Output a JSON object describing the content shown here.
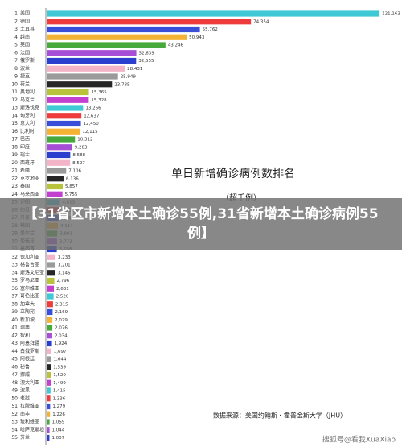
{
  "chart_data": {
    "type": "bar",
    "orientation": "horizontal",
    "title": "单日新增确诊病例数排名",
    "subtitle": "（超千例）",
    "source": "数据来源：美国约翰斯・霍普金斯大学（JHU）",
    "banner": "【31省区市新增本土确诊55例,31省新增本土确诊病例55例】",
    "watermark": "搜狐号@看我XuaXiao",
    "ranks": [
      1,
      2,
      3,
      4,
      5,
      6,
      7,
      8,
      9,
      10,
      11,
      12,
      13,
      14,
      15,
      16,
      17,
      18,
      19,
      20,
      21,
      22,
      23,
      24,
      25,
      26,
      27,
      28,
      29,
      30,
      31,
      32,
      33,
      34,
      35,
      36,
      37,
      38,
      39,
      40,
      41,
      42,
      43,
      44,
      45,
      46,
      47,
      48,
      49,
      50,
      51,
      52,
      53,
      54,
      55
    ],
    "categories": [
      "美国",
      "德国",
      "土耳其",
      "越南",
      "英国",
      "法国",
      "俄罗斯",
      "波兰",
      "捷克",
      "荷兰",
      "奥地利",
      "乌克兰",
      "斯洛伐克",
      "匈牙利",
      "意大利",
      "比利时",
      "巴西",
      "印度",
      "瑞士",
      "西班牙",
      "希腊",
      "克罗地亚",
      "泰国",
      "马来西亚",
      "伊朗",
      "约旦",
      "丹麦",
      "韩国",
      "爱尔兰",
      "葡萄牙",
      "墨西哥",
      "保加利亚",
      "格鲁吉亚",
      "斯洛文尼亚",
      "罗马尼亚",
      "塞尔维亚",
      "哥伦比亚",
      "加拿大",
      "立陶宛",
      "新加坡",
      "瑞典",
      "智利",
      "阿塞拜疆",
      "白俄罗斯",
      "阿根廷",
      "秘鲁",
      "挪威",
      "澳大利亚",
      "波黑",
      "老挝",
      "拉脱维亚",
      "南非",
      "玻利维亚",
      "哈萨克斯坦",
      "芬兰"
    ],
    "values": [
      121163,
      74354,
      55762,
      50943,
      43246,
      32639,
      32555,
      28431,
      25949,
      23785,
      15365,
      15328,
      13266,
      12637,
      12450,
      12115,
      10312,
      9283,
      8588,
      8527,
      7106,
      6136,
      5857,
      5755,
      4813,
      4534,
      4485,
      4114,
      3891,
      3773,
      3698,
      3233,
      3201,
      3146,
      2796,
      2631,
      2520,
      2315,
      2169,
      2079,
      2076,
      2034,
      1924,
      1697,
      1644,
      1539,
      1520,
      1499,
      1415,
      1336,
      1279,
      1226,
      1059,
      1044,
      1007
    ],
    "value_labels": [
      "121,163",
      "74,354",
      "55,762",
      "50,943",
      "43,246",
      "32,639",
      "32,555",
      "28,431",
      "25,949",
      "23,785",
      "15,365",
      "15,328",
      "13,266",
      "12,637",
      "12,450",
      "12,115",
      "10,312",
      "9,283",
      "8,588",
      "8,527",
      "7,106",
      "6,136",
      "5,857",
      "5,755",
      "4,813",
      "4,534",
      "4,485",
      "4,114",
      "3,891",
      "3,773",
      "3,698",
      "3,233",
      "3,201",
      "3,146",
      "2,796",
      "2,631",
      "2,520",
      "2,315",
      "2,169",
      "2,079",
      "2,076",
      "2,034",
      "1,924",
      "1,697",
      "1,644",
      "1,539",
      "1,520",
      "1,499",
      "1,415",
      "1,336",
      "1,279",
      "1,226",
      "1,059",
      "1,044",
      "1,007"
    ],
    "colors": [
      "#3fc8d6",
      "#ee3b3b",
      "#3a4fd8",
      "#f5b335",
      "#47a83c",
      "#a64fd6",
      "#2b3fcf",
      "#f2b4c6",
      "#9a9a9a",
      "#262626",
      "#b8c23a",
      "#c33fcf"
    ],
    "xlim": [
      0,
      122000
    ]
  }
}
